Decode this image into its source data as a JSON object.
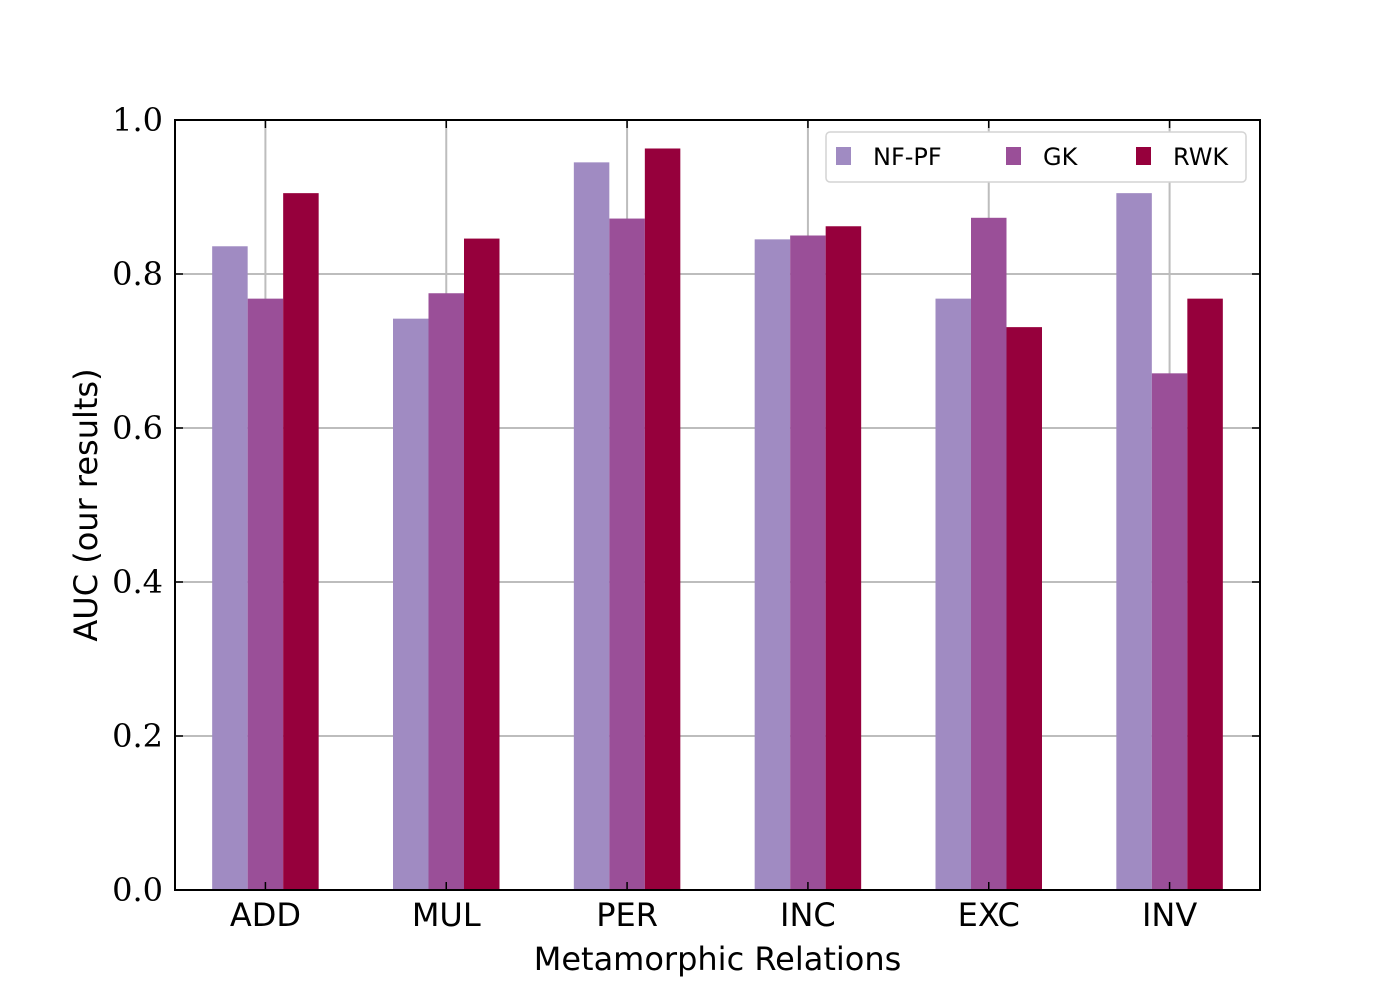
{
  "chart_data": {
    "type": "bar",
    "title": "",
    "xlabel": "Metamorphic Relations",
    "ylabel": "AUC (our results)",
    "categories": [
      "ADD",
      "MUL",
      "PER",
      "INC",
      "EXC",
      "INV"
    ],
    "ylim": [
      0,
      1.0
    ],
    "yticks": [
      "0.0",
      "0.2",
      "0.4",
      "0.6",
      "0.8",
      "1.0"
    ],
    "grid": true,
    "legend_position": "top-right",
    "series": [
      {
        "name": "NF-PF",
        "color": "#a08bc2",
        "values": [
          0.836,
          0.742,
          0.945,
          0.845,
          0.768,
          0.905
        ]
      },
      {
        "name": "GK",
        "color": "#9a4f98",
        "values": [
          0.768,
          0.775,
          0.872,
          0.85,
          0.873,
          0.671
        ]
      },
      {
        "name": "RWK",
        "color": "#96003c",
        "values": [
          0.905,
          0.846,
          0.963,
          0.862,
          0.731,
          0.768
        ]
      }
    ]
  }
}
